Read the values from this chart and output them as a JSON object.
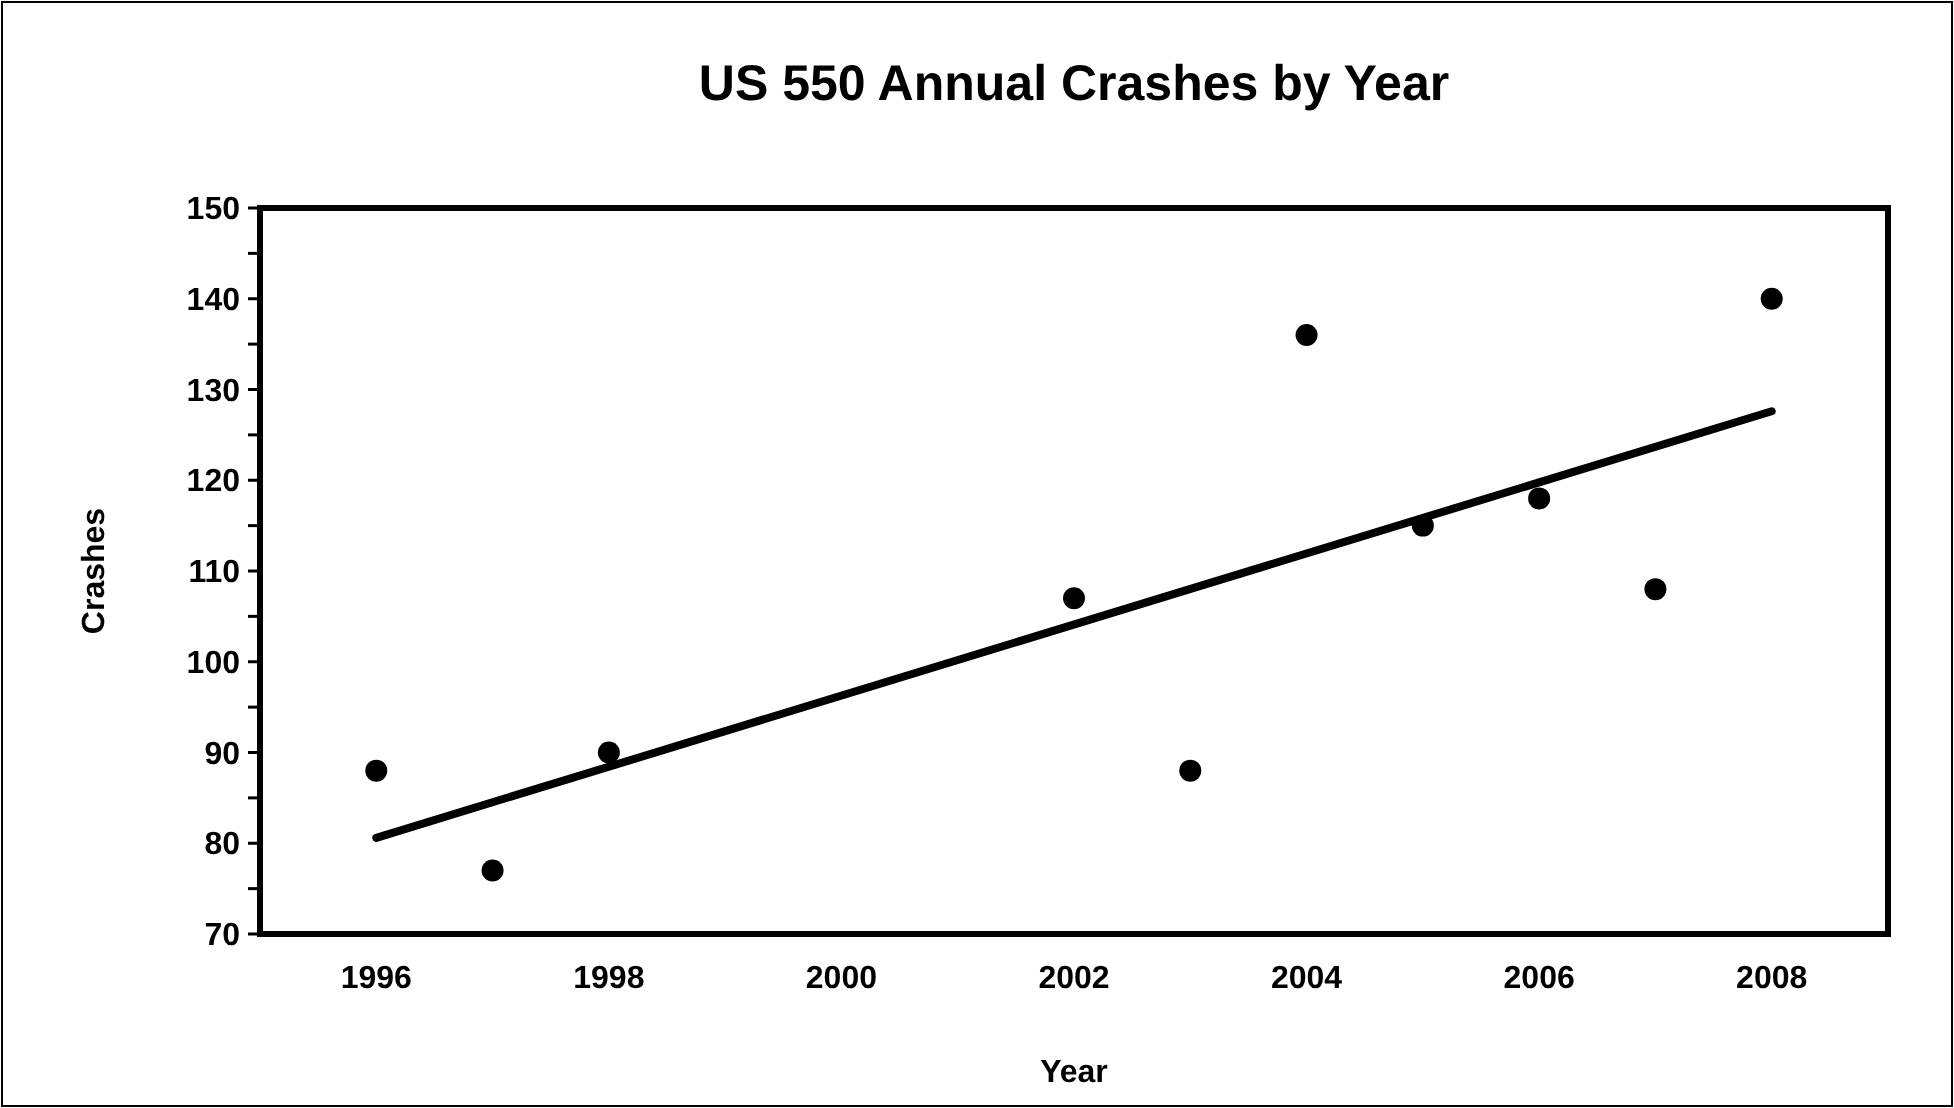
{
  "chart_data": {
    "type": "scatter",
    "title": "US 550 Annual Crashes by Year",
    "xlabel": "Year",
    "ylabel": "Crashes",
    "xlim": [
      1995,
      2009
    ],
    "xticks": [
      1996,
      1998,
      2000,
      2002,
      2004,
      2006,
      2008
    ],
    "ylim": [
      70,
      150
    ],
    "yticks": [
      70,
      {
        "value": 75,
        "label": null
      },
      80,
      {
        "value": 85,
        "label": null
      },
      90,
      {
        "value": 95,
        "label": null
      },
      100,
      {
        "value": 105,
        "label": null
      },
      110,
      {
        "value": 115,
        "label": null
      },
      120,
      {
        "value": 125,
        "label": null
      },
      130,
      {
        "value": 135,
        "label": null
      },
      140,
      {
        "value": 145,
        "label": null
      },
      150
    ],
    "grid": false,
    "marker": "circle",
    "series": [
      {
        "color": "#000000",
        "x": [
          1996,
          1997,
          1998,
          2002,
          2003,
          2004,
          2005,
          2006,
          2007,
          2008
        ],
        "values": [
          88,
          77,
          90,
          107,
          88,
          136,
          115,
          118,
          108,
          140
        ]
      },
      {
        "type": "line",
        "color": "#000000",
        "marker": "none",
        "line_style": "solid",
        "x": [
          1996,
          2008
        ],
        "values": [
          80.6,
          127.6
        ]
      }
    ]
  }
}
